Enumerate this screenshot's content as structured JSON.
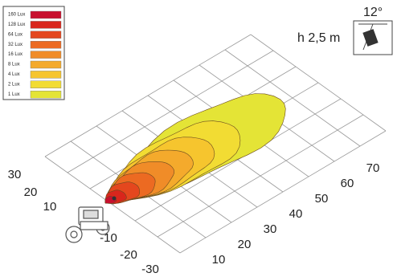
{
  "legend": [
    {
      "label": "160 Lux",
      "color": "#c8102e"
    },
    {
      "label": "128 Lux",
      "color": "#d9261c"
    },
    {
      "label": "64 Lux",
      "color": "#e4471e"
    },
    {
      "label": "32 Lux",
      "color": "#ec6a22"
    },
    {
      "label": "16 Lux",
      "color": "#f08c28"
    },
    {
      "label": "8 Lux",
      "color": "#f4aa2c"
    },
    {
      "label": "4 Lux",
      "color": "#f6c52e"
    },
    {
      "label": "2 Lux",
      "color": "#f2dc33"
    },
    {
      "label": "1 Lux",
      "color": "#e4e436"
    }
  ],
  "mounting": {
    "height": "h 2,5 m",
    "angle": "12°"
  },
  "axes": {
    "lateral": [
      "30",
      "20",
      "10",
      "-10",
      "-20",
      "-30"
    ],
    "distance": [
      "10",
      "20",
      "30",
      "40",
      "50",
      "60",
      "70"
    ]
  }
}
